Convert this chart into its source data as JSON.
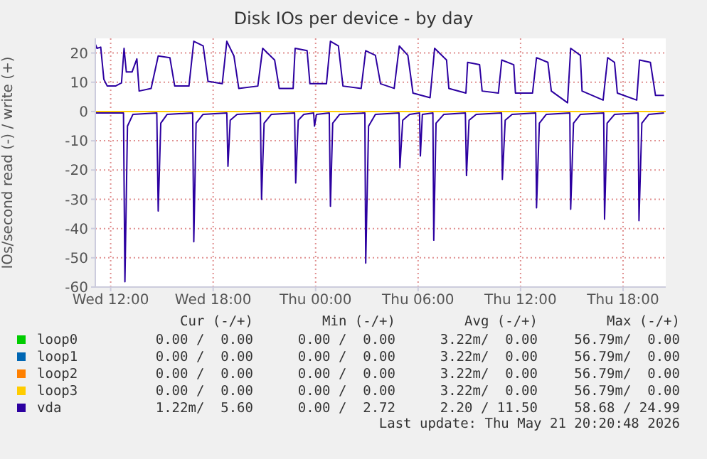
{
  "chart_data": {
    "type": "line",
    "title": "Disk IOs per device - by day",
    "ylabel": "IOs/second read (-) / write (+)",
    "xlim": [
      "2026-05-20T11:06",
      "2026-05-21T20:30"
    ],
    "xticks": [
      {
        "value": "2026-05-20T12:00",
        "label": "Wed 12:00"
      },
      {
        "value": "2026-05-20T18:00",
        "label": "Wed 18:00"
      },
      {
        "value": "2026-05-21T00:00",
        "label": "Thu 00:00"
      },
      {
        "value": "2026-05-21T06:00",
        "label": "Thu 06:00"
      },
      {
        "value": "2026-05-21T12:00",
        "label": "Thu 12:00"
      },
      {
        "value": "2026-05-21T18:00",
        "label": "Thu 18:00"
      }
    ],
    "ylim": [
      -60,
      25
    ],
    "yticks": [
      -60,
      -50,
      -40,
      -30,
      -20,
      -10,
      0,
      10,
      20
    ],
    "grid": true,
    "legend": "bottom",
    "series": [
      {
        "name": "loop0",
        "color": "#00cc00"
      },
      {
        "name": "loop1",
        "color": "#0066b3"
      },
      {
        "name": "loop2",
        "color": "#ff8000"
      },
      {
        "name": "loop3",
        "color": "#ffcc00",
        "x": [
          "2026-05-20T11:06",
          "2026-05-21T20:30"
        ],
        "values": [
          0,
          0
        ]
      },
      {
        "name": null,
        "color": "#2c00a0",
        "x": [
          "2026-05-20T11:06",
          "2026-05-20T12:45",
          "2026-05-20T12:50",
          "2026-05-20T12:59",
          "2026-05-20T13:18",
          "2026-05-20T14:42",
          "2026-05-20T14:47",
          "2026-05-20T14:56",
          "2026-05-20T15:18",
          "2026-05-20T16:48",
          "2026-05-20T16:52",
          "2026-05-20T17:00",
          "2026-05-20T17:24",
          "2026-05-20T18:48",
          "2026-05-20T18:52",
          "2026-05-20T19:00",
          "2026-05-20T19:24",
          "2026-05-20T20:46",
          "2026-05-20T20:50",
          "2026-05-20T20:59",
          "2026-05-20T21:24",
          "2026-05-20T22:46",
          "2026-05-20T22:50",
          "2026-05-20T22:59",
          "2026-05-20T23:18",
          "2026-05-20T23:53",
          "2026-05-20T23:56",
          "2026-05-21T00:03",
          "2026-05-21T00:48",
          "2026-05-21T00:52",
          "2026-05-21T01:00",
          "2026-05-21T01:24",
          "2026-05-21T02:53",
          "2026-05-21T02:56",
          "2026-05-21T03:06",
          "2026-05-21T03:30",
          "2026-05-21T04:53",
          "2026-05-21T04:56",
          "2026-05-21T05:06",
          "2026-05-21T05:30",
          "2026-05-21T06:05",
          "2026-05-21T06:08",
          "2026-05-21T06:15",
          "2026-05-21T06:52",
          "2026-05-21T06:55",
          "2026-05-21T07:03",
          "2026-05-21T07:30",
          "2026-05-21T08:46",
          "2026-05-21T08:50",
          "2026-05-21T08:59",
          "2026-05-21T09:24",
          "2026-05-21T10:53",
          "2026-05-21T10:56",
          "2026-05-21T11:06",
          "2026-05-21T11:30",
          "2026-05-21T12:53",
          "2026-05-21T12:56",
          "2026-05-21T13:06",
          "2026-05-21T13:30",
          "2026-05-21T14:53",
          "2026-05-21T14:56",
          "2026-05-21T15:06",
          "2026-05-21T15:30",
          "2026-05-21T16:52",
          "2026-05-21T16:55",
          "2026-05-21T17:04",
          "2026-05-21T17:30",
          "2026-05-21T18:53",
          "2026-05-21T18:56",
          "2026-05-21T19:06",
          "2026-05-21T19:30",
          "2026-05-21T20:24"
        ],
        "values": [
          -0.5,
          -0.5,
          -58.2,
          -5,
          -1,
          -0.5,
          -34,
          -4,
          -1,
          -0.5,
          -44.5,
          -4,
          -1,
          -0.5,
          -18.7,
          -3,
          -1,
          -0.5,
          -30,
          -4,
          -1,
          -0.5,
          -24.4,
          -3,
          -1,
          -0.5,
          -5,
          -1,
          -0.5,
          -32.4,
          -4,
          -1,
          -0.5,
          -51.8,
          -5,
          -1,
          -0.5,
          -19.2,
          -3,
          -1,
          -0.5,
          -15.2,
          -1,
          -0.5,
          -44,
          -4,
          -1,
          -0.5,
          -21.9,
          -3,
          -1,
          -0.5,
          -23.2,
          -3,
          -1,
          -0.5,
          -32.9,
          -4,
          -1,
          -0.5,
          -33.4,
          -4,
          -1,
          -0.5,
          -36.8,
          -4,
          -1,
          -0.5,
          -37.3,
          -4,
          -1,
          -0.5
        ]
      },
      {
        "name": "vda",
        "color": "#2c00a0",
        "x": [
          "2026-05-20T11:06",
          "2026-05-20T11:12",
          "2026-05-20T11:25",
          "2026-05-20T11:36",
          "2026-05-20T11:48",
          "2026-05-20T12:17",
          "2026-05-20T12:38",
          "2026-05-20T12:47",
          "2026-05-20T12:55",
          "2026-05-20T13:15",
          "2026-05-20T13:32",
          "2026-05-20T13:40",
          "2026-05-20T14:22",
          "2026-05-20T14:47",
          "2026-05-20T15:28",
          "2026-05-20T15:45",
          "2026-05-20T16:35",
          "2026-05-20T16:52",
          "2026-05-20T17:25",
          "2026-05-20T17:42",
          "2026-05-20T18:32",
          "2026-05-20T18:48",
          "2026-05-20T19:13",
          "2026-05-20T19:30",
          "2026-05-20T20:37",
          "2026-05-20T20:54",
          "2026-05-20T21:36",
          "2026-05-20T21:52",
          "2026-05-20T22:41",
          "2026-05-20T22:48",
          "2026-05-20T23:30",
          "2026-05-20T23:40",
          "2026-05-21T00:38",
          "2026-05-21T00:52",
          "2026-05-21T01:20",
          "2026-05-21T01:36",
          "2026-05-21T02:40",
          "2026-05-21T02:56",
          "2026-05-21T03:30",
          "2026-05-21T03:48",
          "2026-05-21T04:36",
          "2026-05-21T04:54",
          "2026-05-21T05:24",
          "2026-05-21T05:42",
          "2026-05-21T06:42",
          "2026-05-21T06:58",
          "2026-05-21T07:40",
          "2026-05-21T07:48",
          "2026-05-21T08:48",
          "2026-05-21T08:54",
          "2026-05-21T09:36",
          "2026-05-21T09:45",
          "2026-05-21T10:42",
          "2026-05-21T10:54",
          "2026-05-21T11:36",
          "2026-05-21T11:42",
          "2026-05-21T12:42",
          "2026-05-21T12:56",
          "2026-05-21T13:36",
          "2026-05-21T13:48",
          "2026-05-21T14:45",
          "2026-05-21T14:56",
          "2026-05-21T15:30",
          "2026-05-21T15:36",
          "2026-05-21T16:50",
          "2026-05-21T17:06",
          "2026-05-21T17:30",
          "2026-05-21T17:40",
          "2026-05-21T18:48",
          "2026-05-21T18:58",
          "2026-05-21T19:36",
          "2026-05-21T19:54",
          "2026-05-21T20:24"
        ],
        "values": [
          23,
          21.6,
          22,
          11,
          8.7,
          8.7,
          9.8,
          21.6,
          13.5,
          13.5,
          18,
          7,
          7.9,
          19,
          18.4,
          8.7,
          8.7,
          24,
          22.4,
          10.3,
          9.5,
          24,
          19,
          7.9,
          8.7,
          21.6,
          17.6,
          7.9,
          7.9,
          21.6,
          20.8,
          9.5,
          9.5,
          24,
          22.4,
          8.7,
          7.9,
          20.8,
          19.2,
          9.5,
          7.9,
          22.4,
          19.2,
          6.3,
          4.7,
          21.6,
          17.6,
          7.9,
          6.3,
          16.8,
          16,
          7,
          6.3,
          17.6,
          16,
          6.3,
          6.3,
          18.4,
          16.8,
          7,
          3,
          21.6,
          19.2,
          7,
          3.9,
          18.4,
          16.8,
          6.3,
          3.9,
          17.6,
          16.8,
          5.5,
          5.5
        ]
      }
    ],
    "annotations": [
      "Cur (-/+)",
      "Min (-/+)",
      "Avg (-/+)",
      "Max (-/+)",
      "0.00 /  0.00",
      "0.00 /  0.00",
      "3.22m/  0.00",
      "56.79m/  0.00",
      "0.00 /  0.00",
      "0.00 /  0.00",
      "3.22m/  0.00",
      "56.79m/  0.00",
      "0.00 /  0.00",
      "0.00 /  0.00",
      "3.22m/  0.00",
      "56.79m/  0.00",
      "0.00 /  0.00",
      "0.00 /  0.00",
      "3.22m/  0.00",
      "56.79m/  0.00",
      "1.22m/  5.60",
      "0.00 /  2.72",
      "2.20 / 11.50",
      "58.68 / 24.99",
      "Last update: Thu May 21 20:20:48 2026"
    ]
  }
}
